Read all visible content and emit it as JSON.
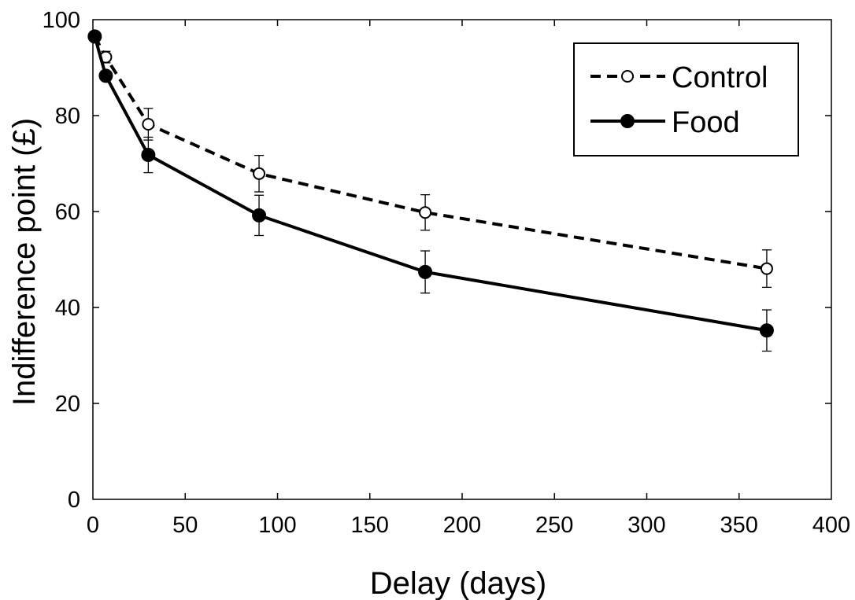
{
  "chart_data": {
    "type": "line",
    "title": "",
    "xlabel": "Delay (days)",
    "ylabel": "Indifference point (£)",
    "xlim": [
      0,
      400
    ],
    "ylim": [
      0,
      100
    ],
    "xticks": [
      "0",
      "50",
      "100",
      "150",
      "200",
      "250",
      "300",
      "350",
      "400"
    ],
    "yticks": [
      "0",
      "20",
      "40",
      "60",
      "80",
      "100"
    ],
    "grid": false,
    "legend_position": "top-right",
    "series": [
      {
        "name": "Control",
        "style": "dashed",
        "marker": "open-circle",
        "color": "#000000",
        "x": [
          1,
          7,
          30,
          90,
          180,
          365
        ],
        "y": [
          96.5,
          92.2,
          78.2,
          67.9,
          59.8,
          48.1
        ],
        "error": [
          0,
          1.2,
          3.3,
          3.8,
          3.7,
          3.9
        ]
      },
      {
        "name": "Food",
        "style": "solid",
        "marker": "filled-circle",
        "color": "#000000",
        "x": [
          1,
          7,
          30,
          90,
          180,
          365
        ],
        "y": [
          96.5,
          88.3,
          71.8,
          59.2,
          47.4,
          35.2
        ],
        "error": [
          0,
          1.0,
          3.7,
          4.2,
          4.4,
          4.3
        ]
      }
    ]
  }
}
